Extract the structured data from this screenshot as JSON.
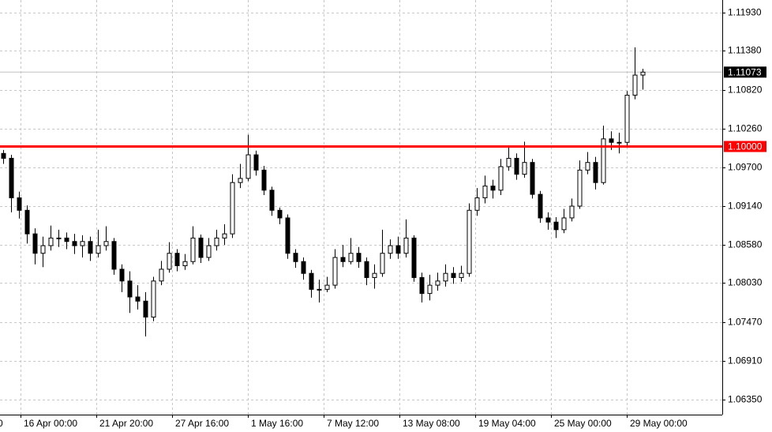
{
  "chart_data": {
    "type": "candlestick",
    "up_color": "#ffffff",
    "down_color": "#000000",
    "wick_color": "#000000",
    "grid": true,
    "ylim": [
      1.06133,
      1.12113
    ],
    "yticks": [
      {
        "value": 1.1193,
        "label": "1.11930"
      },
      {
        "value": 1.1138,
        "label": "1.11380"
      },
      {
        "value": 1.1082,
        "label": "1.10820"
      },
      {
        "value": 1.1026,
        "label": "1.10260"
      },
      {
        "value": 1.097,
        "label": "1.09700"
      },
      {
        "value": 1.0914,
        "label": "1.09140"
      },
      {
        "value": 1.0858,
        "label": "1.08580"
      },
      {
        "value": 1.0803,
        "label": "1.08030"
      },
      {
        "value": 1.0747,
        "label": "1.07470"
      },
      {
        "value": 1.0691,
        "label": "1.06910"
      },
      {
        "value": 1.0635,
        "label": "1.06350"
      }
    ],
    "x_labels": [
      "0",
      "16 Apr 00:00",
      "21 Apr 20:00",
      "27 Apr 16:00",
      "1 May 16:00",
      "7 May 12:00",
      "13 May 08:00",
      "19 May 04:00",
      "25 May 00:00",
      "29 May 00:00"
    ],
    "level": {
      "value": 1.1,
      "label": "1.10000",
      "color": "#ff0000"
    },
    "last_price": {
      "value": 1.11073,
      "label": "1.11073"
    },
    "open": [
      1.099,
      1.0983,
      1.0926,
      1.0908,
      1.0874,
      1.0846,
      1.0857,
      1.0868,
      1.0868,
      1.0863,
      1.0857,
      1.0863,
      1.0846,
      1.0857,
      1.0863,
      1.0823,
      1.0806,
      1.0783,
      1.0777,
      1.0754,
      1.0806,
      1.0823,
      1.0846,
      1.0828,
      1.0834,
      1.0868,
      1.084,
      1.0857,
      1.0868,
      1.0874,
      1.0948,
      1.0954,
      1.0988,
      1.0966,
      1.0937,
      1.0908,
      1.0897,
      1.0846,
      1.0834,
      1.0817,
      1.0794,
      1.0794,
      1.08,
      1.084,
      1.0834,
      1.0846,
      1.0834,
      1.0811,
      1.0817,
      1.0846,
      1.0857,
      1.0846,
      1.0868,
      1.0811,
      1.0788,
      1.08,
      1.0806,
      1.0817,
      1.0811,
      1.0817,
      1.0908,
      1.0926,
      1.0943,
      1.0937,
      1.0971,
      1.0983,
      1.096,
      1.0977,
      1.0931,
      1.0897,
      1.0891,
      1.088,
      1.0897,
      1.0914,
      1.0966,
      1.0977,
      1.0948,
      1.1011,
      1.1006,
      1.1006,
      1.1074,
      1.1103
    ],
    "high": [
      1.0995,
      1.0988,
      1.0935,
      1.0915,
      1.0882,
      1.087,
      1.0886,
      1.088,
      1.0876,
      1.0874,
      1.0872,
      1.087,
      1.088,
      1.0885,
      1.0868,
      1.083,
      1.082,
      1.08,
      1.079,
      1.0812,
      1.0835,
      1.0862,
      1.0852,
      1.0845,
      1.0885,
      1.0873,
      1.0868,
      1.088,
      1.0888,
      1.096,
      1.0975,
      1.1017,
      1.0994,
      1.0972,
      1.0942,
      1.0912,
      1.0902,
      1.0852,
      1.084,
      1.0822,
      1.0808,
      1.0812,
      1.0852,
      1.0858,
      1.0868,
      1.0855,
      1.084,
      1.083,
      1.088,
      1.0866,
      1.087,
      1.0895,
      1.0872,
      1.0818,
      1.0815,
      1.0818,
      1.083,
      1.0826,
      1.0828,
      1.0918,
      1.094,
      1.0958,
      1.0952,
      1.0982,
      1.1,
      1.099,
      1.1007,
      1.0982,
      1.0936,
      1.0905,
      1.0898,
      1.091,
      1.0925,
      1.098,
      1.0992,
      1.0985,
      1.103,
      1.1022,
      1.102,
      1.108,
      1.1143,
      1.1112
    ],
    "low": [
      1.0975,
      1.0905,
      1.0896,
      1.086,
      1.083,
      1.0826,
      1.085,
      1.0855,
      1.0852,
      1.0845,
      1.084,
      1.0835,
      1.084,
      1.085,
      1.0815,
      1.079,
      1.076,
      1.0765,
      1.0726,
      1.0748,
      1.08,
      1.0818,
      1.082,
      1.0822,
      1.083,
      1.0832,
      1.0835,
      1.085,
      1.0858,
      1.0868,
      1.094,
      1.095,
      1.0958,
      1.093,
      1.09,
      1.0888,
      1.0838,
      1.0825,
      1.0808,
      1.0782,
      1.0775,
      1.079,
      1.0795,
      1.0826,
      1.083,
      1.0825,
      1.08,
      1.0795,
      1.0812,
      1.0838,
      1.0838,
      1.084,
      1.0805,
      1.0775,
      1.0778,
      1.0792,
      1.0798,
      1.0802,
      1.0805,
      1.0812,
      1.09,
      1.0918,
      1.0925,
      1.093,
      1.0965,
      1.0952,
      1.0955,
      1.0925,
      1.089,
      1.088,
      1.0868,
      1.0875,
      1.0892,
      1.091,
      1.096,
      1.0938,
      1.0945,
      1.0995,
      1.099,
      1.1,
      1.1068,
      1.1082
    ],
    "close": [
      1.0983,
      1.0926,
      1.0908,
      1.0874,
      1.0846,
      1.0857,
      1.0868,
      1.0868,
      1.0863,
      1.0857,
      1.0863,
      1.0846,
      1.0857,
      1.0863,
      1.0823,
      1.0806,
      1.0783,
      1.0777,
      1.0754,
      1.0806,
      1.0823,
      1.0846,
      1.0828,
      1.0834,
      1.0868,
      1.084,
      1.0857,
      1.0868,
      1.0874,
      1.0948,
      1.0954,
      1.0988,
      1.0966,
      1.0937,
      1.0908,
      1.0897,
      1.0846,
      1.0834,
      1.0817,
      1.0794,
      1.0794,
      1.08,
      1.084,
      1.0834,
      1.0846,
      1.0834,
      1.0811,
      1.0817,
      1.0846,
      1.0857,
      1.0846,
      1.0868,
      1.0811,
      1.0788,
      1.08,
      1.0806,
      1.0817,
      1.0811,
      1.0817,
      1.0908,
      1.0926,
      1.0943,
      1.0937,
      1.0971,
      1.0983,
      1.096,
      1.0977,
      1.0931,
      1.0897,
      1.0891,
      1.088,
      1.0897,
      1.0914,
      1.0966,
      1.0977,
      1.0948,
      1.1011,
      1.1006,
      1.1006,
      1.1074,
      1.1103,
      1.11073
    ]
  }
}
